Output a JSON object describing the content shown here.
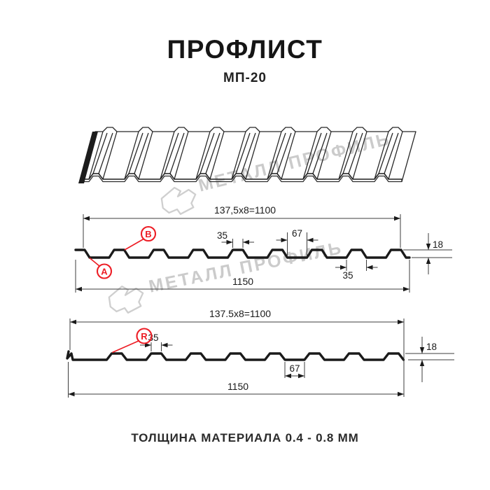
{
  "header": {
    "title": "ПРОФЛИСТ",
    "subtitle": "МП-20"
  },
  "footer": {
    "text": "ТОЛЩИНА МАТЕРИАЛА 0.4 - 0.8 ММ"
  },
  "watermark": {
    "text": "МЕТАЛЛ ПРОФИЛЬ"
  },
  "colors": {
    "accent_red": "#ed1c24",
    "line": "#1a1a1a",
    "dim_line": "#3d3d3d",
    "watermark": "#cbcbcb"
  },
  "section1": {
    "top_dim": "137,5x8=1100",
    "crest_dim": "35",
    "valley_dim": "67",
    "height_dim": "18",
    "underside_dim": "35",
    "overall_dim": "1150",
    "label_a": "A",
    "label_b": "B"
  },
  "section2": {
    "top_dim": "137.5x8=1100",
    "crest_dim": "35",
    "valley_dim": "67",
    "height_dim": "18",
    "overall_dim": "1150",
    "label_r": "R"
  },
  "profile_specs": {
    "module_mm": 137.5,
    "modules_count": 8,
    "cover_width_mm": 1100,
    "overall_width_mm": 1150,
    "crest_width_mm": 35,
    "valley_width_mm": 67,
    "profile_height_mm": 18,
    "thickness_range_mm": "0.4 - 0.8"
  }
}
